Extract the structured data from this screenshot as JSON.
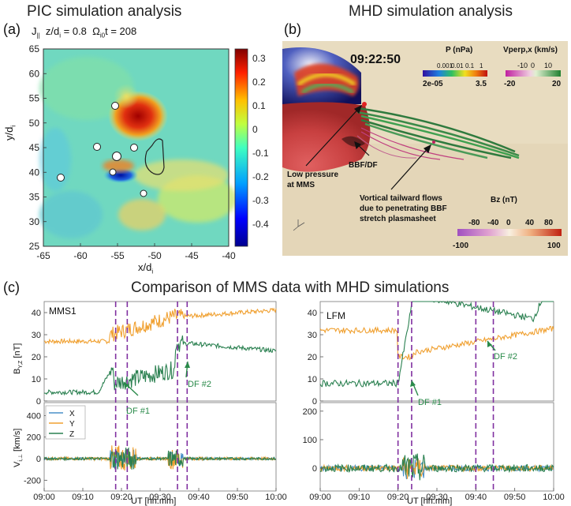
{
  "panel_a": {
    "letter": "(a)",
    "title": "PIC simulation analysis",
    "subtitle_var": "J",
    "subtitle_rest": "z/d",
    "subtitle_eq1": "= 0.8",
    "subtitle_omega": "Ω",
    "subtitle_t": "t = 208",
    "xlabel": "x/d",
    "ylabel": "y/d",
    "xticks": [
      "-65",
      "-60",
      "-55",
      "-50",
      "-45",
      "-40"
    ],
    "yticks": [
      "25",
      "30",
      "35",
      "40",
      "45",
      "50",
      "55",
      "60",
      "65"
    ],
    "colorbar_ticks": [
      "0.3",
      "0.2",
      "0.1",
      "0",
      "-0.1",
      "-0.2",
      "-0.3",
      "-0.4"
    ]
  },
  "panel_b": {
    "letter": "(b)",
    "title": "MHD simulation analysis",
    "time": "09:22:50",
    "pressure_label": "P (nPa)",
    "pressure_ticks_small": [
      "0.001",
      "0.01",
      "0.1",
      "1"
    ],
    "pressure_min": "2e-05",
    "pressure_max": "3.5",
    "vperp_label": "Vperp,x (km/s)",
    "vperp_ticks_small": [
      "-10",
      "0",
      "10"
    ],
    "vperp_min": "-20",
    "vperp_max": "20",
    "bz_label": "Bz (nT)",
    "bz_ticks_small": [
      "-80",
      "-40",
      "0",
      "40",
      "80"
    ],
    "bz_min": "-100",
    "bz_max": "100",
    "ann_low_pressure_1": "Low pressure",
    "ann_low_pressure_2": "at MMS",
    "ann_bbf": "BBF/DF",
    "ann_vortical_1": "Vortical tailward flows",
    "ann_vortical_2": "due to penetrating BBF",
    "ann_vortical_3": "stretch plasmasheet"
  },
  "panel_c": {
    "letter": "(c)",
    "title": "Comparison of MMS data with MHD simulations",
    "left_name": "MMS1",
    "right_name": "LFM",
    "ylabel_top": "B",
    "ylabel_top_sub": "Y,Z",
    "ylabel_top_unit": "[nT]",
    "ylabel_bottom": "V",
    "ylabel_bottom_sub": "i,⊥",
    "ylabel_bottom_unit": "[km/s]",
    "top_yticks": [
      "40",
      "30",
      "20",
      "10",
      "0"
    ],
    "left_bottom_yticks": [
      "400",
      "200",
      "0",
      "-200"
    ],
    "right_bottom_yticks": [
      "200",
      "100",
      "0"
    ],
    "xticks": [
      "09:00",
      "09:10",
      "09:20",
      "09:30",
      "09:40",
      "09:50",
      "10:00"
    ],
    "xlabel": "UT [hh:mm]",
    "legend": [
      "X",
      "Y",
      "Z"
    ],
    "df1": "DF #1",
    "df2": "DF #2"
  },
  "colors": {
    "orange": "#f0a030",
    "green": "#2a8050",
    "blue": "#4a90c8",
    "purple": "#8030a0",
    "annotation_green": "#2a8a4a"
  }
}
